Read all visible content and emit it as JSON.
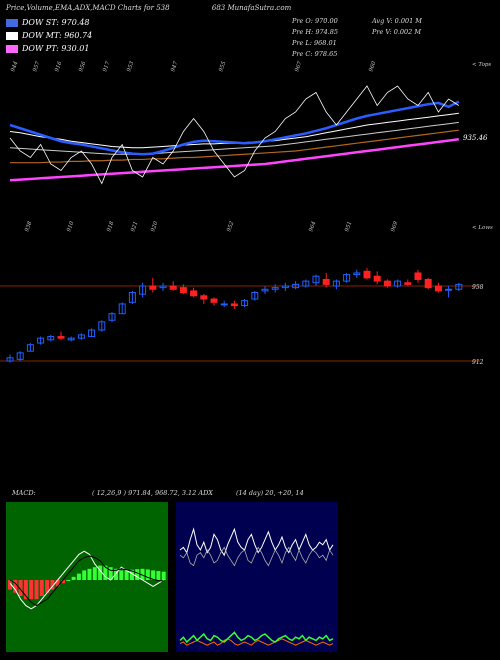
{
  "header": {
    "title": "Price,Volume,EMA,ADX,MACD Charts for 538",
    "title_right": "683 MunafaSutra.com"
  },
  "legend": [
    {
      "label": "DOW ST: 970.48",
      "color": "#4169e1"
    },
    {
      "label": "DOW MT: 960.74",
      "color": "#ffffff"
    },
    {
      "label": "DOW PT: 930.01",
      "color": "#ff66ff"
    }
  ],
  "stats": {
    "col1": [
      "Pre   O: 970.00",
      "Pre   H: 974.85",
      "Pre   L: 968.01",
      "Pre   C: 978.65"
    ],
    "col2": [
      "Avg V: 0.001  M",
      "Pre   V: 0.002  M"
    ]
  },
  "labels": {
    "top_axis": "< Tops",
    "low_axis": "< Lows",
    "price_last": "935.46",
    "level_958": "958",
    "level_912": "912"
  },
  "top_values": [
    "944",
    "957",
    "916",
    "956",
    "917",
    "953",
    "947",
    "955",
    "967",
    "960"
  ],
  "low_values": [
    "938",
    "910",
    "918",
    "921",
    "920",
    "952",
    "964",
    "951",
    "969"
  ],
  "macd": {
    "title": "MACD:",
    "params": "( 12,26,9 ) 971.84, 968.72, 3.12 ADX",
    "adx": "(14 day) 20, +20, 14"
  },
  "colors": {
    "up": "#2060ff",
    "down": "#ff2020",
    "ema_short": "#2a5cff",
    "ema_long": "#ff44ff",
    "macd_bg": "#006400",
    "adx_bg": "#000050",
    "line_red": "#8b2500"
  },
  "chart_data": {
    "type": "candlestick",
    "title": "Price,Volume,EMA,ADX,MACD Charts for 538",
    "candles": [
      {
        "o": 912,
        "h": 916,
        "l": 911,
        "c": 914
      },
      {
        "o": 913,
        "h": 918,
        "l": 912,
        "c": 917
      },
      {
        "o": 918,
        "h": 923,
        "l": 918,
        "c": 922
      },
      {
        "o": 923,
        "h": 927,
        "l": 922,
        "c": 926
      },
      {
        "o": 925,
        "h": 928,
        "l": 924,
        "c": 927
      },
      {
        "o": 927,
        "h": 930,
        "l": 925,
        "c": 926
      },
      {
        "o": 925,
        "h": 927,
        "l": 924,
        "c": 926
      },
      {
        "o": 926,
        "h": 929,
        "l": 925,
        "c": 928
      },
      {
        "o": 927,
        "h": 932,
        "l": 927,
        "c": 931
      },
      {
        "o": 931,
        "h": 937,
        "l": 930,
        "c": 936
      },
      {
        "o": 937,
        "h": 942,
        "l": 936,
        "c": 941
      },
      {
        "o": 941,
        "h": 948,
        "l": 941,
        "c": 947
      },
      {
        "o": 948,
        "h": 955,
        "l": 947,
        "c": 954
      },
      {
        "o": 953,
        "h": 960,
        "l": 951,
        "c": 958
      },
      {
        "o": 958,
        "h": 963,
        "l": 954,
        "c": 956
      },
      {
        "o": 957,
        "h": 960,
        "l": 955,
        "c": 958
      },
      {
        "o": 958,
        "h": 961,
        "l": 955,
        "c": 956
      },
      {
        "o": 957,
        "h": 959,
        "l": 953,
        "c": 954
      },
      {
        "o": 955,
        "h": 957,
        "l": 951,
        "c": 952
      },
      {
        "o": 952,
        "h": 953,
        "l": 947,
        "c": 950
      },
      {
        "o": 950,
        "h": 951,
        "l": 946,
        "c": 948
      },
      {
        "o": 947,
        "h": 949,
        "l": 945,
        "c": 947
      },
      {
        "o": 947,
        "h": 949,
        "l": 944,
        "c": 946
      },
      {
        "o": 946,
        "h": 950,
        "l": 945,
        "c": 949
      },
      {
        "o": 950,
        "h": 955,
        "l": 949,
        "c": 954
      },
      {
        "o": 955,
        "h": 958,
        "l": 953,
        "c": 956
      },
      {
        "o": 956,
        "h": 959,
        "l": 954,
        "c": 957
      },
      {
        "o": 957,
        "h": 960,
        "l": 955,
        "c": 958
      },
      {
        "o": 957,
        "h": 961,
        "l": 956,
        "c": 959
      },
      {
        "o": 958,
        "h": 962,
        "l": 957,
        "c": 961
      },
      {
        "o": 960,
        "h": 965,
        "l": 958,
        "c": 964
      },
      {
        "o": 962,
        "h": 966,
        "l": 957,
        "c": 959
      },
      {
        "o": 958,
        "h": 962,
        "l": 956,
        "c": 961
      },
      {
        "o": 961,
        "h": 966,
        "l": 960,
        "c": 965
      },
      {
        "o": 965,
        "h": 968,
        "l": 963,
        "c": 966
      },
      {
        "o": 967,
        "h": 969,
        "l": 962,
        "c": 963
      },
      {
        "o": 964,
        "h": 967,
        "l": 959,
        "c": 961
      },
      {
        "o": 961,
        "h": 962,
        "l": 957,
        "c": 958
      },
      {
        "o": 958,
        "h": 962,
        "l": 957,
        "c": 961
      },
      {
        "o": 960,
        "h": 962,
        "l": 958,
        "c": 959
      },
      {
        "o": 966,
        "h": 968,
        "l": 960,
        "c": 962
      },
      {
        "o": 962,
        "h": 963,
        "l": 956,
        "c": 957
      },
      {
        "o": 958,
        "h": 960,
        "l": 954,
        "c": 955
      },
      {
        "o": 956,
        "h": 958,
        "l": 951,
        "c": 956
      },
      {
        "o": 956,
        "h": 960,
        "l": 955,
        "c": 959
      }
    ],
    "ema_blue": [
      962,
      961.5,
      961,
      960.5,
      960,
      959.5,
      959.2,
      959,
      958.7,
      958.4,
      958.1,
      957.8,
      957.6,
      957.5,
      957.6,
      958,
      958.5,
      959,
      959.4,
      959.6,
      959.5,
      959.4,
      959.3,
      959.2,
      959.3,
      959.5,
      959.8,
      960.1,
      960.4,
      960.7,
      961.1,
      961.5,
      962,
      962.5,
      963,
      963.4,
      963.7,
      964,
      964.3,
      964.6,
      964.9,
      965.2,
      965.4,
      964.8,
      965.6
    ],
    "ema_white1": [
      961,
      960.8,
      960.5,
      960.2,
      960,
      959.8,
      959.5,
      959.3,
      959.1,
      958.9,
      958.7,
      958.6,
      958.5,
      958.5,
      958.6,
      958.7,
      958.8,
      958.9,
      959,
      959.1,
      959.1,
      959.2,
      959.2,
      959.3,
      959.4,
      959.5,
      959.6,
      959.8,
      960,
      960.2,
      960.5,
      960.8,
      961.1,
      961.4,
      961.7,
      962,
      962.2,
      962.4,
      962.6,
      962.8,
      963,
      963.2,
      963.4,
      963.6,
      963.8
    ],
    "ema_white2": [
      958.5,
      958.4,
      958.3,
      958.2,
      958.1,
      958,
      957.9,
      957.8,
      957.7,
      957.6,
      957.5,
      957.5,
      957.5,
      957.5,
      957.6,
      957.7,
      957.8,
      957.9,
      958,
      958.1,
      958.2,
      958.3,
      958.4,
      958.5,
      958.6,
      958.7,
      958.8,
      959,
      959.2,
      959.4,
      959.6,
      959.8,
      960,
      960.2,
      960.4,
      960.6,
      960.8,
      961,
      961.2,
      961.4,
      961.6,
      961.8,
      962,
      962.2,
      962.4
    ],
    "ema_brown": [
      956.2,
      956.2,
      956.2,
      956.2,
      956.3,
      956.3,
      956.4,
      956.4,
      956.5,
      956.5,
      956.6,
      956.6,
      956.7,
      956.7,
      956.8,
      956.8,
      956.9,
      957,
      957,
      957.1,
      957.2,
      957.3,
      957.4,
      957.5,
      957.6,
      957.7,
      957.8,
      957.9,
      958,
      958.2,
      958.4,
      958.6,
      958.8,
      959,
      959.2,
      959.4,
      959.6,
      959.8,
      960,
      960.2,
      960.4,
      960.6,
      960.8,
      961,
      961.2
    ],
    "ema_pink": [
      953.5,
      953.6,
      953.7,
      953.8,
      953.9,
      954,
      954.1,
      954.2,
      954.3,
      954.4,
      954.5,
      954.6,
      954.7,
      954.8,
      954.9,
      955,
      955.1,
      955.2,
      955.3,
      955.4,
      955.5,
      955.6,
      955.7,
      955.8,
      955.9,
      956,
      956.2,
      956.4,
      956.6,
      956.8,
      957,
      957.2,
      957.4,
      957.6,
      957.8,
      958,
      958.2,
      958.4,
      958.6,
      958.8,
      959,
      959.2,
      959.4,
      959.6,
      959.8
    ],
    "price_line": [
      960,
      958,
      957,
      959,
      956,
      955,
      957,
      958,
      956,
      953,
      957,
      959,
      955,
      954,
      957,
      956,
      958,
      961,
      963,
      961,
      958,
      956,
      954,
      955,
      958,
      960,
      961,
      963,
      964,
      966,
      967,
      964,
      962,
      964,
      966,
      968,
      965,
      967,
      968,
      966,
      965,
      967,
      964,
      966,
      965
    ],
    "macd_hist": [
      -3,
      -4,
      -5,
      -6,
      -6,
      -6,
      -5,
      -4,
      -3,
      -2,
      -1,
      0,
      1,
      2,
      3,
      3.5,
      4,
      4.5,
      4.5,
      4,
      3.5,
      3,
      3,
      3.2,
      3.4,
      3.5,
      3.3,
      3,
      2.8,
      2.6
    ],
    "macd_line": [
      -1,
      -3,
      -6,
      -8,
      -9,
      -8,
      -6,
      -4,
      -2,
      0,
      2,
      4,
      6,
      8,
      9,
      8,
      5,
      3,
      1,
      0,
      2,
      4,
      3,
      2,
      1,
      0,
      -1,
      -2,
      -1,
      0
    ],
    "macd_signal": [
      0,
      -1,
      -3,
      -5,
      -7,
      -8,
      -7,
      -6,
      -4,
      -2,
      0,
      2,
      4,
      6,
      7,
      7.5,
      7,
      6,
      4,
      3,
      3,
      3.5,
      3.2,
      2.8,
      2.2,
      1.5,
      0.8,
      0.2,
      -0.2,
      -0.3
    ],
    "adx_plus": [
      20,
      21,
      19,
      24,
      28,
      22,
      20,
      23,
      19,
      21,
      26,
      24,
      20,
      18,
      22,
      25,
      28,
      23,
      21,
      20,
      24,
      26,
      22,
      19,
      21,
      24,
      27,
      23,
      20,
      22,
      25,
      21,
      19,
      22,
      24,
      20,
      23,
      26,
      22,
      20,
      21,
      23,
      22,
      24,
      20,
      22
    ],
    "adx_minus": [
      18,
      17,
      19,
      15,
      14,
      18,
      19,
      17,
      20,
      18,
      15,
      16,
      19,
      21,
      18,
      16,
      14,
      17,
      19,
      20,
      16,
      15,
      18,
      21,
      19,
      16,
      14,
      17,
      20,
      18,
      15,
      19,
      21,
      18,
      16,
      20,
      17,
      15,
      18,
      20,
      19,
      17,
      18,
      16,
      20,
      18
    ],
    "adx_bottom_green": [
      6,
      8,
      5,
      7,
      9,
      6,
      8,
      10,
      7,
      6,
      9,
      8,
      6,
      5,
      7,
      9,
      11,
      8,
      6,
      7,
      9,
      8,
      6,
      7,
      9,
      10,
      8,
      6,
      5,
      7,
      8,
      9,
      7,
      6,
      8,
      7,
      9,
      6,
      8,
      7,
      6,
      8,
      7,
      9,
      6,
      7
    ],
    "adx_bottom_orange": [
      4,
      5,
      3,
      4,
      5,
      6,
      5,
      4,
      3,
      4,
      5,
      3,
      4,
      6,
      7,
      6,
      4,
      3,
      4,
      5,
      4,
      3,
      5,
      6,
      5,
      4,
      3,
      4,
      5,
      6,
      7,
      6,
      5,
      4,
      3,
      4,
      5,
      6,
      5,
      4,
      3,
      4,
      5,
      4,
      3,
      4
    ]
  }
}
